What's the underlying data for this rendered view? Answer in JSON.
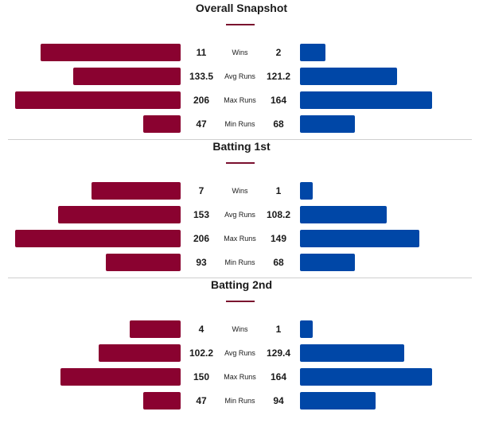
{
  "colors": {
    "team_a": "#8a0230",
    "team_b": "#0047a7",
    "accent": "#7a0f2e"
  },
  "chart_data": [
    {
      "type": "bar",
      "title": "Overall Snapshot",
      "categories": [
        "Wins",
        "Avg Runs",
        "Max Runs",
        "Min Runs"
      ],
      "series": [
        {
          "values": [
            11,
            133.5,
            206,
            47
          ]
        },
        {
          "values": [
            2,
            121.2,
            164,
            68
          ]
        }
      ],
      "labels": [
        [
          "11",
          "133.5",
          "206",
          "47"
        ],
        [
          "2",
          "121.2",
          "164",
          "68"
        ]
      ]
    },
    {
      "type": "bar",
      "title": "Batting 1st",
      "categories": [
        "Wins",
        "Avg Runs",
        "Max Runs",
        "Min Runs"
      ],
      "series": [
        {
          "values": [
            7,
            153,
            206,
            93
          ]
        },
        {
          "values": [
            1,
            108.2,
            149,
            68
          ]
        }
      ],
      "labels": [
        [
          "7",
          "153",
          "206",
          "93"
        ],
        [
          "1",
          "108.2",
          "149",
          "68"
        ]
      ]
    },
    {
      "type": "bar",
      "title": "Batting 2nd",
      "categories": [
        "Wins",
        "Avg Runs",
        "Max Runs",
        "Min Runs"
      ],
      "series": [
        {
          "values": [
            4,
            102.2,
            150,
            47
          ]
        },
        {
          "values": [
            1,
            129.4,
            164,
            94
          ]
        }
      ],
      "labels": [
        [
          "4",
          "102.2",
          "150",
          "47"
        ],
        [
          "1",
          "129.4",
          "164",
          "94"
        ]
      ]
    }
  ]
}
